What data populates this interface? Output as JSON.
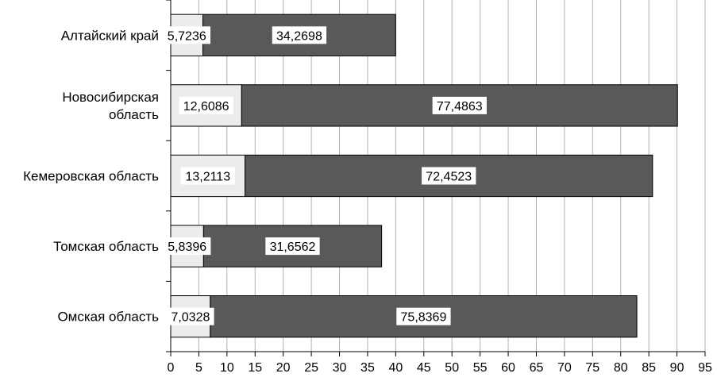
{
  "chart_data": {
    "type": "bar",
    "orientation": "horizontal",
    "stacked": true,
    "categories": [
      "Алтайский край",
      "Новосибирская область",
      "Кемеровская область",
      "Томская область",
      "Омская область"
    ],
    "category_lines": [
      [
        "Алтайский край"
      ],
      [
        "Новосибирская",
        "область"
      ],
      [
        "Кемеровская область"
      ],
      [
        "Томская область"
      ],
      [
        "Омская область"
      ]
    ],
    "series": [
      {
        "values": [
          5.7236,
          12.6086,
          13.2113,
          5.8396,
          7.0328
        ],
        "color": "#ececec"
      },
      {
        "values": [
          34.2698,
          77.4863,
          72.4523,
          31.6562,
          75.8369
        ],
        "color": "#595959"
      }
    ],
    "value_labels": [
      [
        "5,7236",
        "12,6086",
        "13,2113",
        "5,8396",
        "7,0328"
      ],
      [
        "34,2698",
        "77,4863",
        "72,4523",
        "31,6562",
        "75,8369"
      ]
    ],
    "xlim": [
      0,
      95
    ],
    "xticks": [
      0,
      5,
      10,
      15,
      20,
      25,
      30,
      35,
      40,
      45,
      50,
      55,
      60,
      65,
      70,
      75,
      80,
      85,
      90,
      95
    ],
    "grid": true,
    "legend": "none"
  }
}
